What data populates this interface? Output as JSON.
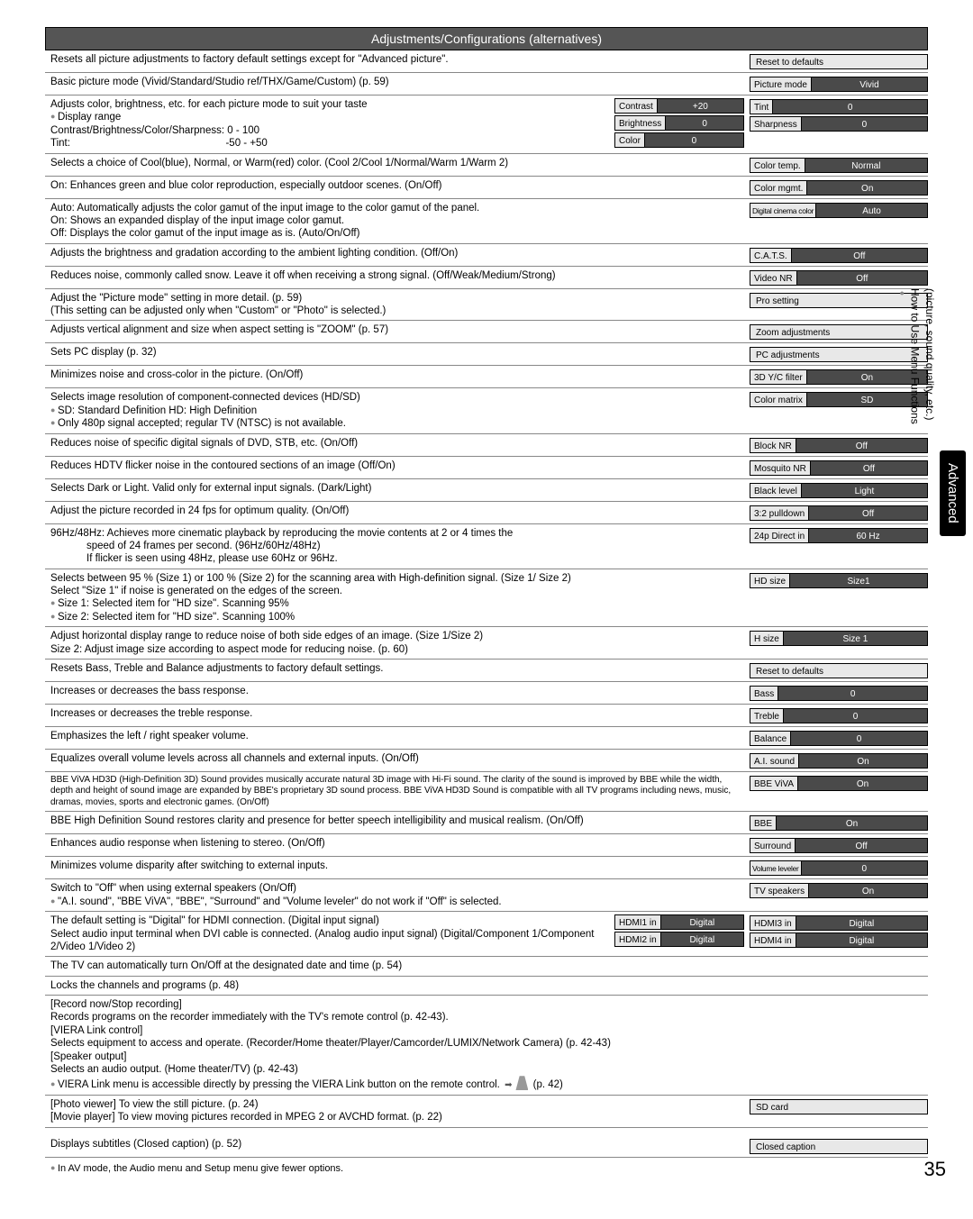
{
  "header": "Adjustments/Configurations (alternatives)",
  "rows": [
    {
      "desc": "Resets all picture adjustments to factory default settings except for \"Advanced picture\".",
      "right": [
        {
          "single": "Reset to defaults"
        }
      ]
    },
    {
      "desc": "Basic picture mode (Vivid/Standard/Studio ref/THX/Game/Custom) (p. 59)",
      "right": [
        {
          "label": "Picture mode",
          "value": "Vivid"
        }
      ]
    },
    {
      "desc": "Adjusts color, brightness, etc. for each picture mode to suit your taste",
      "bullets": [
        "Display range"
      ],
      "extra": "Contrast/Brightness/Color/Sharpness:  0 - 100<br>Tint:&nbsp;&nbsp;&nbsp;&nbsp;&nbsp;&nbsp;&nbsp;&nbsp;&nbsp;&nbsp;&nbsp;&nbsp;&nbsp;&nbsp;&nbsp;&nbsp;&nbsp;&nbsp;&nbsp;&nbsp;&nbsp;&nbsp;&nbsp;&nbsp;&nbsp;&nbsp;&nbsp;&nbsp;&nbsp;&nbsp;&nbsp;&nbsp;&nbsp;&nbsp;&nbsp;&nbsp;&nbsp;&nbsp;&nbsp;&nbsp;&nbsp;&nbsp;&nbsp;&nbsp;&nbsp;&nbsp;&nbsp;&nbsp;&nbsp;&nbsp;&nbsp;&nbsp;&nbsp;&nbsp;-50 - +50",
      "mid": [
        {
          "label": "Contrast",
          "value": "+20"
        },
        {
          "label": "Brightness",
          "value": "0"
        },
        {
          "label": "Color",
          "value": "0"
        }
      ],
      "right": [
        {
          "label": "Tint",
          "value": "0"
        },
        {
          "label": "Sharpness",
          "value": "0"
        }
      ]
    },
    {
      "desc": "Selects a choice of Cool(blue), Normal, or Warm(red) color. (Cool 2/Cool 1/Normal/Warm 1/Warm 2)",
      "right": [
        {
          "label": "Color temp.",
          "value": "Normal"
        }
      ]
    },
    {
      "desc": "On:  Enhances green and blue color reproduction, especially outdoor scenes. (On/Off)",
      "right": [
        {
          "label": "Color mgmt.",
          "value": "On"
        }
      ]
    },
    {
      "desc": "Auto: Automatically adjusts the color gamut of the input image to the color gamut of the panel.<br>On:   Shows an expanded display of the input image color gamut.<br>Off:   Displays the color gamut of the input image as is. (Auto/On/Off)",
      "right": [
        {
          "label": "Digital cinema color",
          "value": "Auto",
          "tiny": true
        }
      ]
    },
    {
      "desc": "Adjusts the brightness and gradation according to the ambient lighting condition. (Off/On)",
      "right": [
        {
          "label": "C.A.T.S.",
          "value": "Off"
        }
      ]
    },
    {
      "desc": "Reduces noise, commonly called snow. Leave it off when receiving a strong signal. (Off/Weak/Medium/Strong)",
      "right": [
        {
          "label": "Video NR",
          "value": "Off"
        }
      ]
    },
    {
      "desc": "Adjust the \"Picture mode\" setting in more detail. (p. 59)<br>(This setting can be adjusted only when \"Custom\" or \"Photo\" is selected.)",
      "right": [
        {
          "single": "Pro setting"
        }
      ]
    },
    {
      "desc": "Adjusts vertical alignment and size when aspect setting is \"ZOOM\" (p. 57)",
      "right": [
        {
          "single": "Zoom adjustments"
        }
      ]
    },
    {
      "desc": "Sets PC display (p. 32)",
      "right": [
        {
          "single": "PC adjustments"
        }
      ]
    },
    {
      "desc": "Minimizes noise and cross-color in the picture. (On/Off)",
      "right": [
        {
          "label": "3D Y/C filter",
          "value": "On"
        }
      ]
    },
    {
      "desc": "Selects image resolution of component-connected devices (HD/SD)",
      "bullets": [
        "SD:  Standard Definition      HD:  High Definition",
        "Only 480p signal accepted; regular TV (NTSC) is not available."
      ],
      "right": [
        {
          "label": "Color matrix",
          "value": "SD"
        }
      ]
    },
    {
      "desc": "Reduces noise of specific digital signals of DVD, STB, etc. (On/Off)",
      "right": [
        {
          "label": "Block NR",
          "value": "Off"
        }
      ]
    },
    {
      "desc": "Reduces HDTV flicker noise in the contoured sections of an image (Off/On)",
      "right": [
        {
          "label": "Mosquito NR",
          "value": "Off"
        }
      ]
    },
    {
      "desc": "Selects Dark or Light. Valid only for external input signals. (Dark/Light)",
      "right": [
        {
          "label": "Black level",
          "value": "Light"
        }
      ]
    },
    {
      "desc": "Adjust the picture recorded in 24 fps for optimum quality. (On/Off)",
      "right": [
        {
          "label": "3:2 pulldown",
          "value": "Off"
        }
      ]
    },
    {
      "desc": "96Hz/48Hz: Achieves more cinematic playback by reproducing the movie contents at 2 or 4 times the<br><span class='indent'>speed of 24 frames per second. (96Hz/60Hz/48Hz)</span><span class='indent'>If flicker is seen using 48Hz, please use 60Hz or 96Hz.</span>",
      "right": [
        {
          "label": "24p Direct in",
          "value": "60 Hz"
        }
      ]
    },
    {
      "desc": "Selects between 95 % (Size 1) or 100 % (Size 2) for the scanning area with High-definition signal. (Size 1/ Size 2)<br>Select \"Size 1\" if noise is generated on the edges of the screen.",
      "bullets": [
        "Size 1: Selected item for \"HD size\". Scanning 95%",
        "Size 2: Selected item for \"HD size\". Scanning 100%"
      ],
      "right": [
        {
          "label": "HD size",
          "value": "Size1"
        }
      ]
    },
    {
      "desc": "Adjust horizontal display range to reduce noise of both side edges of an image. (Size 1/Size 2)<br>Size 2: Adjust image size according to aspect mode for reducing noise. (p. 60)",
      "right": [
        {
          "label": "H size",
          "value": "Size 1"
        }
      ]
    },
    {
      "desc": "Resets Bass, Treble and Balance adjustments to factory default settings.",
      "right": [
        {
          "single": "Reset to defaults"
        }
      ]
    },
    {
      "desc": "Increases or decreases the bass response.",
      "right": [
        {
          "label": "Bass",
          "value": "0"
        }
      ]
    },
    {
      "desc": "Increases or decreases the treble response.",
      "right": [
        {
          "label": "Treble",
          "value": "0"
        }
      ]
    },
    {
      "desc": "Emphasizes the left / right speaker volume.",
      "right": [
        {
          "label": "Balance",
          "value": "0"
        }
      ]
    },
    {
      "desc": "Equalizes overall volume levels across all channels and external inputs. (On/Off)",
      "right": [
        {
          "label": "A.I. sound",
          "value": "On"
        }
      ]
    },
    {
      "desc": "BBE ViVA HD3D (High-Definition 3D) Sound provides musically accurate natural 3D image with Hi-Fi sound. The clarity of the sound is improved by BBE while the width, depth and height of sound image are expanded by BBE's proprietary 3D sound process. BBE ViVA HD3D Sound is compatible with all TV programs including news, music, dramas, movies, sports and electronic games. (On/Off)",
      "small": true,
      "right": [
        {
          "label": "BBE ViVA",
          "value": "On"
        }
      ]
    },
    {
      "desc": "BBE High Definition Sound restores clarity and presence for better speech intelligibility and musical realism. (On/Off)",
      "right": [
        {
          "label": "BBE",
          "value": "On"
        }
      ]
    },
    {
      "desc": "Enhances audio response when listening to stereo. (On/Off)",
      "right": [
        {
          "label": "Surround",
          "value": "Off"
        }
      ]
    },
    {
      "desc": "Minimizes volume disparity after switching to external inputs.",
      "right": [
        {
          "label": "Volume leveler",
          "value": "0",
          "tiny": true
        }
      ]
    },
    {
      "desc": "Switch to \"Off\" when using external speakers (On/Off)",
      "bullets": [
        "\"A.I. sound\", \"BBE ViVA\", \"BBE\", \"Surround\" and \"Volume leveler\" do not work if \"Off\" is selected."
      ],
      "right": [
        {
          "label": "TV speakers",
          "value": "On"
        }
      ]
    },
    {
      "desc": "The default setting is \"Digital\" for HDMI connection. (Digital input signal)<br>Select audio input terminal when DVI cable is connected. (Analog audio input signal) (Digital/Component 1/Component 2/Video 1/Video 2)",
      "mid": [
        {
          "label": "HDMI1 in",
          "value": "Digital"
        },
        {
          "label": "HDMI2 in",
          "value": "Digital"
        }
      ],
      "right": [
        {
          "label": "HDMI3 in",
          "value": "Digital"
        },
        {
          "label": "HDMI4 in",
          "value": "Digital"
        }
      ]
    },
    {
      "desc": "The TV can automatically turn On/Off at the designated date and time (p. 54)"
    },
    {
      "desc": "Locks the channels and programs (p. 48)"
    },
    {
      "desc": "[Record now/Stop recording]<br>Records programs on the recorder immediately with the TV's remote control (p. 42-43).<br>[VIERA Link control]<br>Selects equipment to access and operate. (Recorder/Home theater/Player/Camcorder/LUMIX/Network Camera) (p. 42-43)<br>[Speaker output]<br>Selects an audio output. (Home theater/TV) (p. 42-43)",
      "bullets_after": [
        "VIERA Link menu is accessible directly by pressing the VIERA Link button on the remote control. <span class='arrow'></span><span class='remote-icon'></span>  (p. 42)"
      ]
    },
    {
      "desc": "[Photo viewer]  To view the still picture. (p. 24)<br>[Movie player]  To view moving pictures recorded in MPEG 2 or AVCHD format. (p. 22)",
      "right": [
        {
          "single": "SD card"
        }
      ]
    },
    {
      "desc": "Displays subtitles (Closed caption) (p. 52)",
      "right": [
        {
          "single": "Closed caption"
        }
      ],
      "gap": true
    }
  ],
  "footnote": "In AV mode, the Audio menu and Setup menu give fewer options.",
  "side": {
    "line1": "How to Use Menu Functions",
    "line2": "(picture, sound quality, etc.)",
    "tab": "Advanced"
  },
  "pagenum": "35"
}
